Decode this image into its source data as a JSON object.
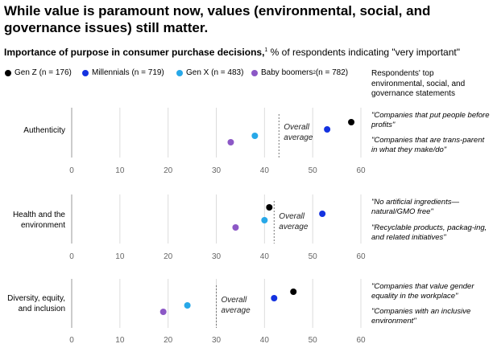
{
  "title": "While value is paramount now, values (environmental, social, and governance issues) still matter.",
  "subtitle": {
    "bold": "Importance of purpose in consumer purchase decisions,",
    "sup": "1",
    "rest": " % of respondents indicating \"very important\""
  },
  "legend": [
    {
      "label": "Gen Z (n = 176)",
      "sup": "",
      "color": "#000000"
    },
    {
      "label": "Millennials (n = 719)",
      "sup": "",
      "color": "#1432e0"
    },
    {
      "label": "Gen X (n = 483)",
      "sup": "",
      "color": "#27a8e8"
    },
    {
      "label": "Baby boomers",
      "sup": "2",
      "label_after": " (n = 782)",
      "color": "#8c58c6"
    }
  ],
  "statements_header": "Respondents' top environmental, social, and governance statements",
  "overall_average_label": [
    "Overall",
    "average"
  ],
  "chart_data": {
    "type": "scatter",
    "xlim": [
      0,
      60
    ],
    "x_ticks": [
      0,
      10,
      20,
      30,
      40,
      50,
      60
    ],
    "series_names": [
      "Gen Z",
      "Millennials",
      "Gen X",
      "Baby boomers"
    ],
    "panels": [
      {
        "category": [
          "Authenticity"
        ],
        "values": {
          "Gen Z": 58,
          "Millennials": 53,
          "Gen X": 38,
          "Baby boomers": 33
        },
        "overall_average": 43,
        "statements": [
          "\"Companies that put people before profits\"",
          "\"Companies that are trans-parent in what they make/do\""
        ]
      },
      {
        "category": [
          "Health and the",
          "environment"
        ],
        "values": {
          "Gen Z": 41,
          "Millennials": 52,
          "Gen X": 40,
          "Baby boomers": 34
        },
        "overall_average": 42,
        "statements": [
          "\"No artificial ingredients—natural/GMO free\"",
          "\"Recyclable products, packag-ing, and related initiatives\""
        ]
      },
      {
        "category": [
          "Diversity, equity,",
          "and inclusion"
        ],
        "values": {
          "Gen Z": 46,
          "Millennials": 42,
          "Gen X": 24,
          "Baby boomers": 19
        },
        "overall_average": 30,
        "statements": [
          "\"Companies that value gender equality in the workplace\"",
          "\"Companies with an inclusive environment\""
        ]
      }
    ]
  }
}
